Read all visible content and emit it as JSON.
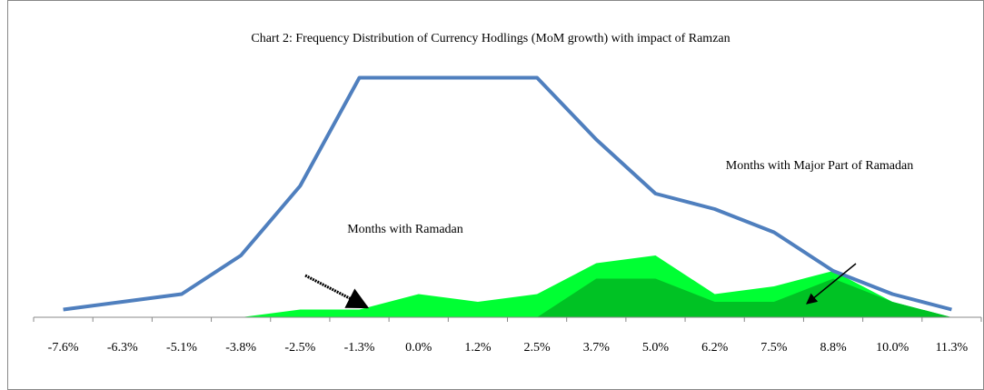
{
  "chart_data": {
    "type": "line-area",
    "title": "Chart 2: Frequency Distribution of  Currency Hodlings  (MoM growth) with impact of Ramzan",
    "annotations": [
      "Months with Ramadan",
      "Months with Major Part of Ramadan"
    ],
    "categories": [
      "-7.6%",
      "-6.3%",
      "-5.1%",
      "-3.8%",
      "-2.5%",
      "-1.3%",
      "0.0%",
      "1.2%",
      "2.5%",
      "3.7%",
      "5.0%",
      "6.2%",
      "7.5%",
      "8.8%",
      "10.0%",
      "11.3%"
    ],
    "series": [
      {
        "type": "area",
        "color": "#00ff33",
        "values": [
          null,
          null,
          null,
          0,
          1,
          1,
          3,
          2,
          3,
          7,
          8,
          3,
          4,
          6,
          2,
          0
        ]
      },
      {
        "type": "area",
        "color": "#00c224",
        "values": [
          null,
          null,
          null,
          null,
          null,
          null,
          null,
          null,
          0,
          5,
          5,
          2,
          2,
          5,
          2,
          0
        ]
      },
      {
        "type": "line",
        "color": "#4f7fbe",
        "values": [
          1,
          2,
          3,
          8,
          17,
          31,
          31,
          31,
          31,
          23,
          16,
          14,
          11,
          6,
          3,
          1
        ]
      }
    ],
    "ylim": [
      0,
      31
    ]
  }
}
